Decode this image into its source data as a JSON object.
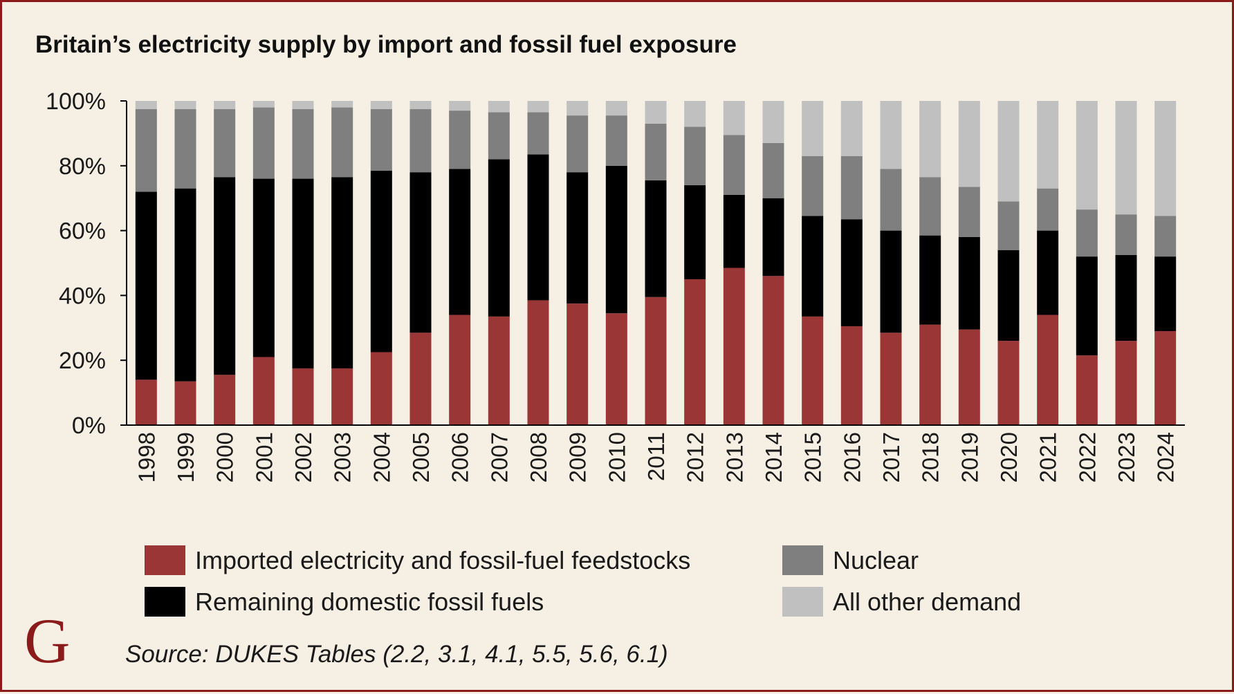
{
  "title": "Britain’s electricity supply by import and fossil fuel exposure",
  "source": "Source: DUKES Tables (2.2, 3.1, 4.1, 5.5, 5.6, 6.1)",
  "logo": "G",
  "colors": {
    "background": "#f5efe4",
    "border": "#8b1a1a",
    "imported": "#9b3636",
    "domestic": "#000000",
    "nuclear": "#7f7f7f",
    "other": "#c0c0c0"
  },
  "chart_data": {
    "type": "bar",
    "stacked": true,
    "title": "Britain’s electricity supply by import and fossil fuel exposure",
    "xlabel": "",
    "ylabel": "",
    "ylim": [
      0,
      100
    ],
    "yticks": [
      0,
      20,
      40,
      60,
      80,
      100
    ],
    "ytick_labels": [
      "0%",
      "20%",
      "40%",
      "60%",
      "80%",
      "100%"
    ],
    "grid": false,
    "legend_position": "bottom",
    "categories": [
      "1998",
      "1999",
      "2000",
      "2001",
      "2002",
      "2003",
      "2004",
      "2005",
      "2006",
      "2007",
      "2008",
      "2009",
      "2010",
      "2011",
      "2012",
      "2013",
      "2014",
      "2015",
      "2016",
      "2017",
      "2018",
      "2019",
      "2020",
      "2021",
      "2022",
      "2023",
      "2024"
    ],
    "series": [
      {
        "name": "Imported electricity and fossil-fuel feedstocks",
        "color": "#9b3636",
        "values": [
          14,
          13.5,
          15.5,
          21,
          17.5,
          17.5,
          22.5,
          28.5,
          34,
          33.5,
          38.5,
          37.5,
          34.5,
          39.5,
          45,
          48.5,
          46,
          33.5,
          30.5,
          28.5,
          31,
          29.5,
          26,
          34,
          21.5,
          26,
          29
        ]
      },
      {
        "name": "Remaining domestic fossil fuels",
        "color": "#000000",
        "values": [
          58,
          59.5,
          61,
          55,
          58.5,
          59,
          56,
          49.5,
          45,
          48.5,
          45,
          40.5,
          45.5,
          36,
          29,
          22.5,
          24,
          31,
          33,
          31.5,
          27.5,
          28.5,
          28,
          26,
          30.5,
          26.5,
          23
        ]
      },
      {
        "name": "Nuclear",
        "color": "#7f7f7f",
        "values": [
          25.5,
          24.5,
          21,
          22,
          21.5,
          21.5,
          19,
          19.5,
          18,
          14.5,
          13,
          17.5,
          15.5,
          17.5,
          18,
          18.5,
          17,
          18.5,
          19.5,
          19,
          18,
          15.5,
          15,
          13,
          14.5,
          12.5,
          12.5
        ]
      },
      {
        "name": "All other demand",
        "color": "#c0c0c0",
        "values": [
          2.5,
          2.5,
          2.5,
          2,
          2.5,
          2,
          2.5,
          2.5,
          3,
          3.5,
          3.5,
          4.5,
          4.5,
          7,
          8,
          10.5,
          13,
          17,
          17,
          21,
          23.5,
          26.5,
          31,
          27,
          33.5,
          35,
          35.5
        ]
      }
    ],
    "legend": [
      "Imported electricity and fossil-fuel feedstocks",
      "Nuclear",
      "Remaining domestic fossil fuels",
      "All other demand"
    ]
  }
}
